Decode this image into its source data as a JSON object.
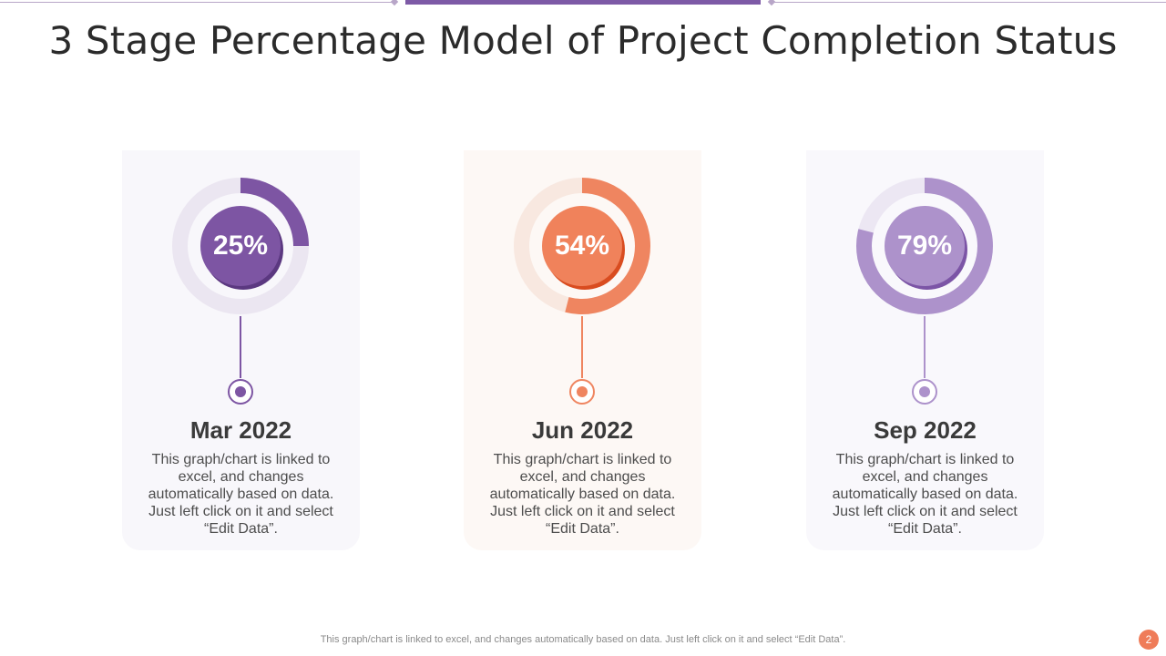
{
  "header": {
    "title": "3 Stage Percentage Model of Project Completion Status"
  },
  "chart_data": {
    "type": "donut",
    "title": "3 Stage Percentage Model of Project Completion Status",
    "categories": [
      "Mar 2022",
      "Jun 2022",
      "Sep 2022"
    ],
    "values": [
      25,
      54,
      79
    ],
    "labels": [
      "25%",
      "54%",
      "79%"
    ],
    "unit": "%",
    "max": 100
  },
  "stages": [
    {
      "date": "Mar 2022",
      "percent": 25,
      "label": "25%",
      "description": "This graph/chart  is linked to excel, and changes automatically  based on data. Just left click on it and select “Edit Data”.",
      "colors": {
        "card": "#f8f7fb",
        "track": "#ebe6f1",
        "arc": "#7d55a3",
        "inner": "#7d55a3",
        "shadow": "#5b3880",
        "stem": "#7d55a3"
      }
    },
    {
      "date": "Jun 2022",
      "percent": 54,
      "label": "54%",
      "description": "This graph/chart  is linked to excel, and changes automatically  based on data. Just left click on it and select “Edit Data”.",
      "colors": {
        "card": "#fdf8f5",
        "track": "#f8e8e0",
        "arc": "#ef8560",
        "inner": "#f0825b",
        "shadow": "#d94c20",
        "stem": "#ef8560"
      }
    },
    {
      "date": "Sep 2022",
      "percent": 79,
      "label": "79%",
      "description": "This graph/chart  is linked to excel, and changes automatically  based on data. Just left click on it and select “Edit Data”.",
      "colors": {
        "card": "#f9f8fc",
        "track": "#ece7f3",
        "arc": "#ad92cb",
        "inner": "#ad92cb",
        "shadow": "#7c55a6",
        "stem": "#ad92cb"
      }
    }
  ],
  "footer": {
    "note": "This graph/chart is linked to excel,  and changes automatically based on data. Just left click on it and select “Edit Data”.",
    "page_number": "2"
  },
  "theme": {
    "accent": "#7d5aa6",
    "divider": "#b8a6c8",
    "page_badge": "#ef7c59"
  }
}
